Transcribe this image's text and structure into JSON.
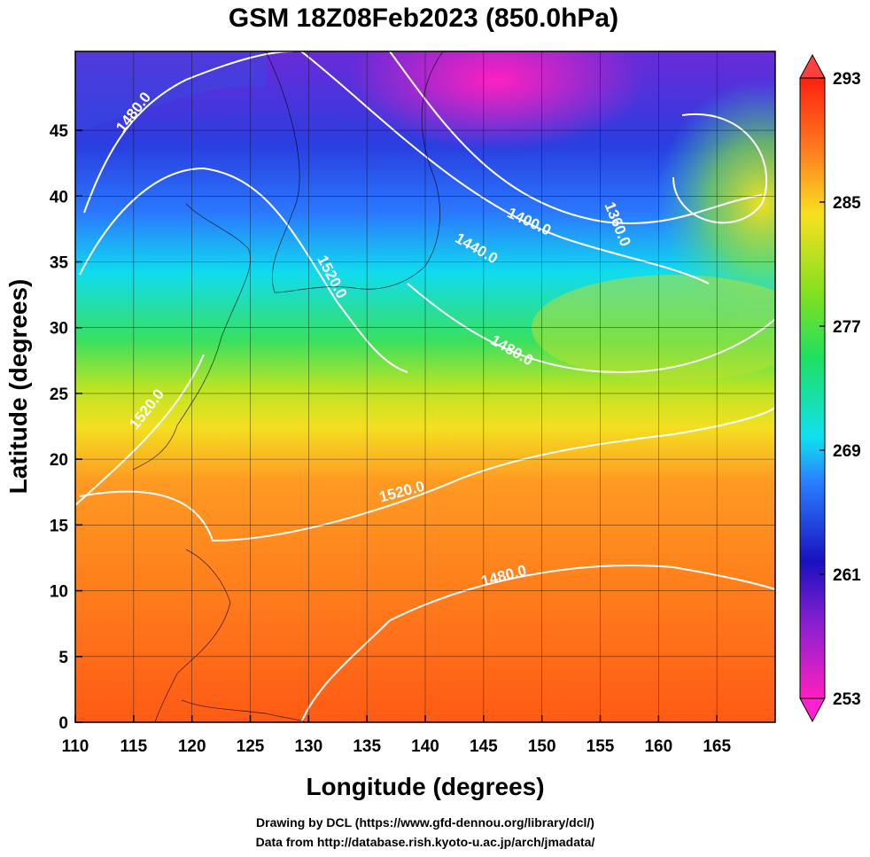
{
  "title": "GSM 18Z08Feb2023 (850.0hPa)",
  "x_axis": {
    "label": "Longitude (degrees)",
    "lim": [
      110,
      170
    ],
    "ticks": [
      110,
      115,
      120,
      125,
      130,
      135,
      140,
      145,
      150,
      155,
      160,
      165
    ]
  },
  "y_axis": {
    "label": "Latitude  (degrees)",
    "lim": [
      0,
      51
    ],
    "ticks": [
      0,
      5,
      10,
      15,
      20,
      25,
      30,
      35,
      40,
      45
    ]
  },
  "colorbar": {
    "lim": [
      253,
      293
    ],
    "ticks": [
      253,
      261,
      269,
      277,
      285,
      293
    ]
  },
  "contour_labels": [
    "1480.0",
    "1520.0",
    "1400.0",
    "1440.0",
    "1360.0",
    "1480.0",
    "1520.0",
    "1520.0",
    "1480.0"
  ],
  "credits": [
    "Drawing by DCL (https://www.gfd-dennou.org/library/dcl/)",
    "Data from http://database.rish.kyoto-u.ac.jp/arch/jmadata/"
  ]
}
